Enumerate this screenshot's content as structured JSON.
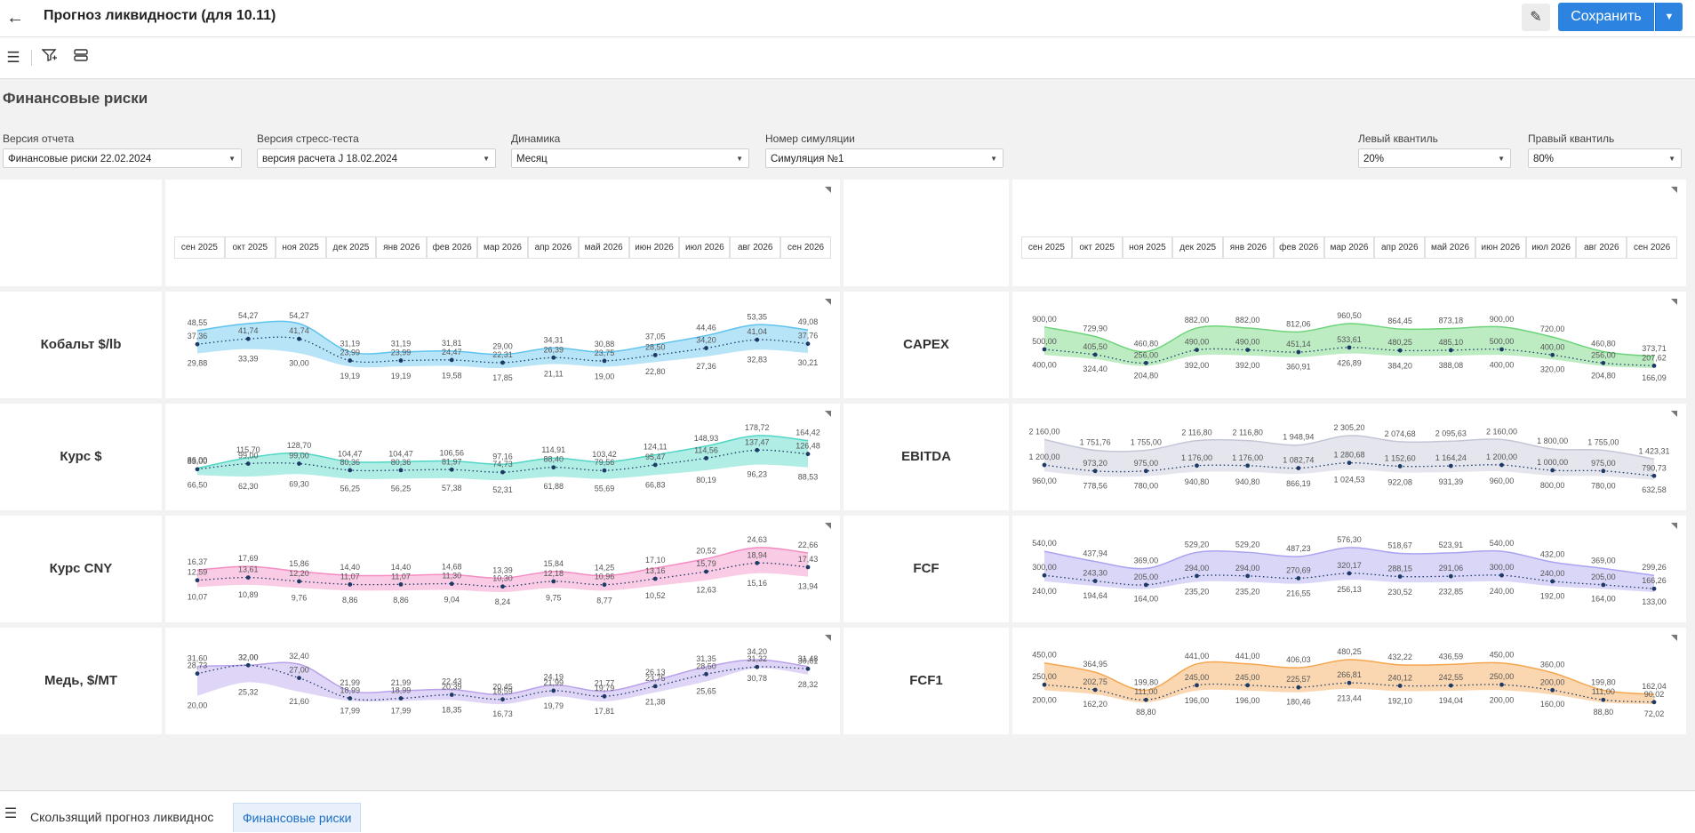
{
  "header": {
    "title": "Прогноз ликвидности (для 10.11)",
    "save_label": "Сохранить"
  },
  "icons": {
    "back": "arrow-left-icon",
    "edit": "pencil-icon",
    "menu": "hamburger-icon",
    "filter": "filter-icon",
    "layout": "layers-icon",
    "dropdown": "chevron-down-icon"
  },
  "page": {
    "title": "Финансовые риски"
  },
  "filters": [
    {
      "label": "Версия отчета",
      "value": "Финансовые риски 22.02.2024"
    },
    {
      "label": "Версия стресс-теста",
      "value": "версия расчета J 18.02.2024"
    },
    {
      "label": "Динамика",
      "value": "Месяц"
    },
    {
      "label": "Номер симуляции",
      "value": "Симуляция №1"
    },
    {
      "label": "Левый квантиль",
      "value": "20%"
    },
    {
      "label": "Правый квантиль",
      "value": "80%"
    }
  ],
  "months": [
    "сен 2025",
    "окт 2025",
    "ноя 2025",
    "дек 2025",
    "янв 2026",
    "фев 2026",
    "мар 2026",
    "апр 2026",
    "май 2026",
    "июн 2026",
    "июл 2026",
    "авг 2026",
    "сен 2026"
  ],
  "chart_data": [
    {
      "type": "area",
      "title": "Кобальт $/lb",
      "color": "#5fc3ee",
      "dot_color": "#1d3a66",
      "upper": [
        "48,55",
        "54,27",
        "54,27",
        "31,19",
        "31,19",
        "31,81",
        "29,00",
        "34,31",
        "30,88",
        "37,05",
        "44,46",
        "53,35",
        "49,08"
      ],
      "upper_v": [
        48.55,
        54.27,
        54.27,
        31.19,
        31.19,
        31.81,
        29.0,
        34.31,
        30.88,
        37.05,
        44.46,
        53.35,
        49.08
      ],
      "mid": [
        "37,36",
        "41,74",
        "41,74",
        "23,99",
        "23,99",
        "24,47",
        "22,31",
        "26,39",
        "23,75",
        "28,50",
        "34,20",
        "41,04",
        "37,76"
      ],
      "mid_v": [
        37.36,
        41.74,
        41.74,
        23.99,
        23.99,
        24.47,
        22.31,
        26.39,
        23.75,
        28.5,
        34.2,
        41.04,
        37.76
      ],
      "lower": [
        "29,88",
        "33,39",
        "30,00",
        "19,19",
        "19,19",
        "19,58",
        "17,85",
        "21,11",
        "19,00",
        "22,80",
        "27,36",
        "32,83",
        "30,21"
      ],
      "lower_v": [
        29.88,
        33.39,
        30.0,
        19.19,
        19.19,
        19.58,
        17.85,
        21.11,
        19.0,
        22.8,
        27.36,
        32.83,
        30.21
      ]
    },
    {
      "type": "area",
      "title": "Курс $",
      "color": "#4fd6c6",
      "dot_color": "#1d3a66",
      "upper": [
        "86,00",
        "115,70",
        "128,70",
        "104,47",
        "104,47",
        "106,56",
        "97,16",
        "114,91",
        "103,42",
        "124,11",
        "148,93",
        "178,72",
        "164,42"
      ],
      "upper_v": [
        86.0,
        115.7,
        128.7,
        104.47,
        104.47,
        106.56,
        97.16,
        114.91,
        103.42,
        124.11,
        148.93,
        178.72,
        164.42
      ],
      "mid": [
        "83,00",
        "99,00",
        "99,00",
        "80,36",
        "80,36",
        "81,97",
        "74,73",
        "88,40",
        "79,56",
        "95,47",
        "114,56",
        "137,47",
        "126,48"
      ],
      "mid_v": [
        83.0,
        99.0,
        99.0,
        80.36,
        80.36,
        81.97,
        74.73,
        88.4,
        79.56,
        95.47,
        114.56,
        137.47,
        126.48
      ],
      "lower": [
        "66,50",
        "62,30",
        "69,30",
        "56,25",
        "56,25",
        "57,38",
        "52,31",
        "61,88",
        "55,69",
        "66,83",
        "80,19",
        "96,23",
        "88,53"
      ],
      "lower_v": [
        66.5,
        62.3,
        69.3,
        56.25,
        56.25,
        57.38,
        52.31,
        61.88,
        55.69,
        66.83,
        80.19,
        96.23,
        88.53
      ]
    },
    {
      "type": "area",
      "title": "Курс CNY",
      "color": "#f58cc4",
      "dot_color": "#1d3a66",
      "upper": [
        "16,37",
        "17,69",
        "15,86",
        "14,40",
        "14,40",
        "14,68",
        "13,39",
        "15,84",
        "14,25",
        "17,10",
        "20,52",
        "24,63",
        "22,66"
      ],
      "upper_v": [
        16.37,
        17.69,
        15.86,
        14.4,
        14.4,
        14.68,
        13.39,
        15.84,
        14.25,
        17.1,
        20.52,
        24.63,
        22.66
      ],
      "mid": [
        "12,59",
        "13,61",
        "12,20",
        "11,07",
        "11,07",
        "11,30",
        "10,30",
        "12,18",
        "10,96",
        "13,16",
        "15,79",
        "18,94",
        "17,43"
      ],
      "mid_v": [
        12.59,
        13.61,
        12.2,
        11.07,
        11.07,
        11.3,
        10.3,
        12.18,
        10.96,
        13.16,
        15.79,
        18.94,
        17.43
      ],
      "lower": [
        "10,07",
        "10,89",
        "9,76",
        "8,86",
        "8,86",
        "9,04",
        "8,24",
        "9,75",
        "8,77",
        "10,52",
        "12,63",
        "15,16",
        "13,94"
      ],
      "lower_v": [
        10.07,
        10.89,
        9.76,
        8.86,
        8.86,
        9.04,
        8.24,
        9.75,
        8.77,
        10.52,
        12.63,
        15.16,
        13.94
      ]
    },
    {
      "type": "area",
      "title": "Медь, $/MT",
      "color": "#b9a2ea",
      "dot_color": "#1d3a66",
      "upper": [
        "31,60",
        "32,00",
        "32,40",
        "21,99",
        "21,99",
        "22,43",
        "20,45",
        "24,19",
        "21,77",
        "26,13",
        "31,35",
        "34,20",
        "31,48"
      ],
      "upper_v": [
        31.6,
        32.0,
        32.4,
        21.99,
        21.99,
        22.43,
        20.45,
        24.19,
        21.77,
        26.13,
        31.35,
        34.2,
        31.48
      ],
      "mid": [
        "28,73",
        "32,00",
        "27,00",
        "18,99",
        "18,99",
        "20,39",
        "18,59",
        "21,99",
        "19,79",
        "23,75",
        "28,50",
        "31,32",
        "30,61"
      ],
      "mid_v": [
        28.73,
        32.0,
        27.0,
        18.99,
        18.99,
        20.39,
        18.59,
        21.99,
        19.79,
        23.75,
        28.5,
        31.32,
        30.61
      ],
      "lower": [
        "20,00",
        "25,32",
        "21,60",
        "17,99",
        "17,99",
        "18,35",
        "16,73",
        "19,79",
        "17,81",
        "21,38",
        "25,65",
        "30,78",
        "28,32"
      ],
      "lower_v": [
        20.0,
        25.32,
        21.6,
        17.99,
        17.99,
        18.35,
        16.73,
        19.79,
        17.81,
        21.38,
        25.65,
        30.78,
        28.32
      ]
    },
    {
      "type": "area",
      "title": "CAPEX",
      "color": "#6dd47a",
      "dot_color": "#1d3a66",
      "upper": [
        "900,00",
        "729,90",
        "460,80",
        "882,00",
        "882,00",
        "812,06",
        "960,50",
        "864,45",
        "873,18",
        "900,00",
        "720,00",
        "460,80",
        "373,71"
      ],
      "upper_v": [
        900.0,
        729.9,
        460.8,
        882.0,
        882.0,
        812.06,
        960.5,
        864.45,
        873.18,
        900.0,
        720.0,
        460.8,
        373.71
      ],
      "mid": [
        "500,00",
        "405,50",
        "256,00",
        "490,00",
        "490,00",
        "451,14",
        "533,61",
        "480,25",
        "485,10",
        "500,00",
        "400,00",
        "256,00",
        "207,62"
      ],
      "mid_v": [
        500.0,
        405.5,
        256.0,
        490.0,
        490.0,
        451.14,
        533.61,
        480.25,
        485.1,
        500.0,
        400.0,
        256.0,
        207.62
      ],
      "lower": [
        "400,00",
        "324,40",
        "204,80",
        "392,00",
        "392,00",
        "360,91",
        "426,89",
        "384,20",
        "388,08",
        "400,00",
        "320,00",
        "204,80",
        "166,09"
      ],
      "lower_v": [
        400.0,
        324.4,
        204.8,
        392.0,
        392.0,
        360.91,
        426.89,
        384.2,
        388.08,
        400.0,
        320.0,
        204.8,
        166.09
      ]
    },
    {
      "type": "area",
      "title": "EBITDA",
      "color": "#c4c6d6",
      "dot_color": "#1d3a66",
      "upper": [
        "2 160,00",
        "1 751,76",
        "1 755,00",
        "2 116,80",
        "2 116,80",
        "1 948,94",
        "2 305,20",
        "2 074,68",
        "2 095,63",
        "2 160,00",
        "1 800,00",
        "1 755,00",
        "1 423,31"
      ],
      "upper_v": [
        2160.0,
        1751.76,
        1755.0,
        2116.8,
        2116.8,
        1948.94,
        2305.2,
        2074.68,
        2095.63,
        2160.0,
        1800.0,
        1755.0,
        1423.31
      ],
      "mid": [
        "1 200,00",
        "973,20",
        "975,00",
        "1 176,00",
        "1 176,00",
        "1 082,74",
        "1 280,68",
        "1 152,60",
        "1 164,24",
        "1 200,00",
        "1 000,00",
        "975,00",
        "790,73"
      ],
      "mid_v": [
        1200.0,
        973.2,
        975.0,
        1176.0,
        1176.0,
        1082.74,
        1280.68,
        1152.6,
        1164.24,
        1200.0,
        1000.0,
        975.0,
        790.73
      ],
      "lower": [
        "960,00",
        "778,56",
        "780,00",
        "940,80",
        "940,80",
        "866,19",
        "1 024,53",
        "922,08",
        "931,39",
        "960,00",
        "800,00",
        "780,00",
        "632,58"
      ],
      "lower_v": [
        960.0,
        778.56,
        780.0,
        940.8,
        940.8,
        866.19,
        1024.53,
        922.08,
        931.39,
        960.0,
        800.0,
        780.0,
        632.58
      ]
    },
    {
      "type": "area",
      "title": "FCF",
      "color": "#aaa3f0",
      "dot_color": "#1d3a66",
      "upper": [
        "540,00",
        "437,94",
        "369,00",
        "529,20",
        "529,20",
        "487,23",
        "576,30",
        "518,67",
        "523,91",
        "540,00",
        "432,00",
        "369,00",
        "299,26"
      ],
      "upper_v": [
        540.0,
        437.94,
        369.0,
        529.2,
        529.2,
        487.23,
        576.3,
        518.67,
        523.91,
        540.0,
        432.0,
        369.0,
        299.26
      ],
      "mid": [
        "300,00",
        "243,30",
        "205,00",
        "294,00",
        "294,00",
        "270,69",
        "320,17",
        "288,15",
        "291,06",
        "300,00",
        "240,00",
        "205,00",
        "166,26"
      ],
      "mid_v": [
        300.0,
        243.3,
        205.0,
        294.0,
        294.0,
        270.69,
        320.17,
        288.15,
        291.06,
        300.0,
        240.0,
        205.0,
        166.26
      ],
      "lower": [
        "240,00",
        "194,64",
        "164,00",
        "235,20",
        "235,20",
        "216,55",
        "256,13",
        "230,52",
        "232,85",
        "240,00",
        "192,00",
        "164,00",
        "133,00"
      ],
      "lower_v": [
        240.0,
        194.64,
        164.0,
        235.2,
        235.2,
        216.55,
        256.13,
        230.52,
        232.85,
        240.0,
        192.0,
        164.0,
        133.0
      ]
    },
    {
      "type": "area",
      "title": "FCF1",
      "color": "#f5a650",
      "dot_color": "#1d3a66",
      "upper": [
        "450,00",
        "364,95",
        "199,80",
        "441,00",
        "441,00",
        "406,03",
        "480,25",
        "432,22",
        "436,59",
        "450,00",
        "360,00",
        "199,80",
        "162,04"
      ],
      "upper_v": [
        450.0,
        364.95,
        199.8,
        441.0,
        441.0,
        406.03,
        480.25,
        432.22,
        436.59,
        450.0,
        360.0,
        199.8,
        162.04
      ],
      "mid": [
        "250,00",
        "202,75",
        "111,00",
        "245,00",
        "245,00",
        "225,57",
        "266,81",
        "240,12",
        "242,55",
        "250,00",
        "200,00",
        "111,00",
        "90,02"
      ],
      "mid_v": [
        250.0,
        202.75,
        111.0,
        245.0,
        245.0,
        225.57,
        266.81,
        240.12,
        242.55,
        250.0,
        200.0,
        111.0,
        90.02
      ],
      "lower": [
        "200,00",
        "162,20",
        "88,80",
        "196,00",
        "196,00",
        "180,46",
        "213,44",
        "192,10",
        "194,04",
        "200,00",
        "160,00",
        "88,80",
        "72,02"
      ],
      "lower_v": [
        200.0,
        162.2,
        88.8,
        196.0,
        196.0,
        180.46,
        213.44,
        192.1,
        194.04,
        200.0,
        160.0,
        88.8,
        72.02
      ]
    }
  ],
  "tabs": [
    {
      "label": "Скользящий прогноз ликвиднос"
    },
    {
      "label": "Финансовые риски"
    }
  ]
}
